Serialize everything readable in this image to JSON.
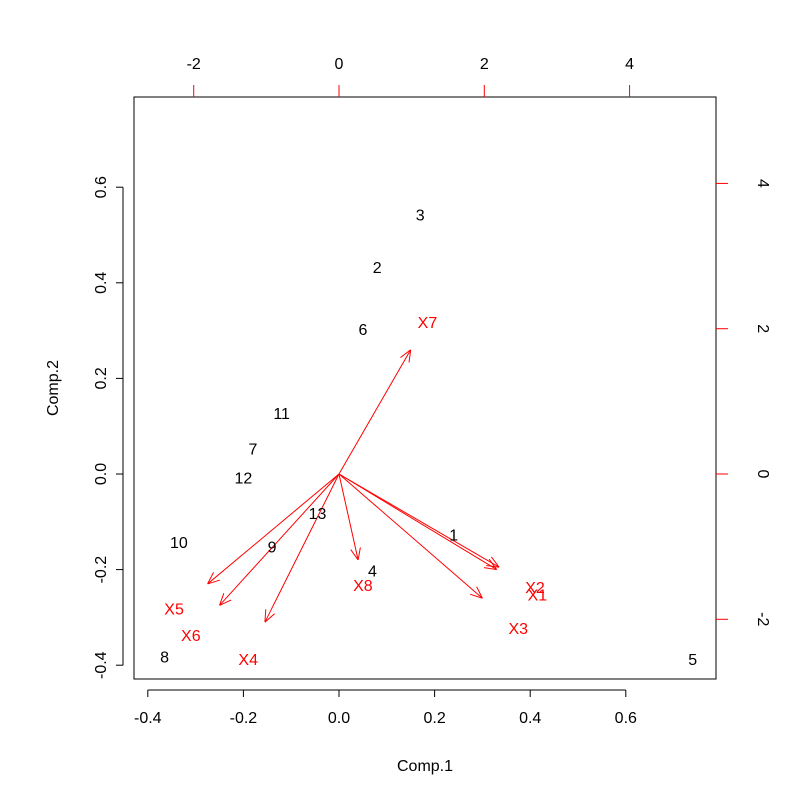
{
  "chart_data": {
    "type": "scatter",
    "subtype": "biplot",
    "xlabel": "Comp.1",
    "ylabel": "Comp.2",
    "xlim": [
      -0.4,
      0.78
    ],
    "ylim": [
      -0.43,
      0.79
    ],
    "x_ticks": [
      -0.4,
      -0.2,
      0.0,
      0.2,
      0.4,
      0.6
    ],
    "x_tick_labels": [
      "-0.4",
      "-0.2",
      "0.0",
      "0.2",
      "0.4",
      "0.6"
    ],
    "y_ticks": [
      -0.4,
      -0.2,
      0.0,
      0.2,
      0.4,
      0.6
    ],
    "y_tick_labels": [
      "-0.4",
      "-0.2",
      "0.0",
      "0.2",
      "0.4",
      "0.6"
    ],
    "top_ticks": [
      -2,
      0,
      2,
      4
    ],
    "top_tick_labels": [
      "-2",
      "0",
      "2",
      "4"
    ],
    "right_ticks": [
      -2,
      0,
      2,
      4
    ],
    "right_tick_labels": [
      "-2",
      "0",
      "2",
      "4"
    ],
    "secondary_scale": 6.58,
    "grid": false,
    "colors": {
      "points": "#000000",
      "loadings": "#ff0000",
      "axes": "#000000",
      "secondary_ticks": "#ff0000"
    },
    "points": [
      {
        "label": "1",
        "x": 0.24,
        "y": -0.13
      },
      {
        "label": "2",
        "x": 0.08,
        "y": 0.43
      },
      {
        "label": "3",
        "x": 0.17,
        "y": 0.54
      },
      {
        "label": "4",
        "x": 0.07,
        "y": -0.205
      },
      {
        "label": "5",
        "x": 0.74,
        "y": -0.39
      },
      {
        "label": "6",
        "x": 0.05,
        "y": 0.3
      },
      {
        "label": "7",
        "x": -0.18,
        "y": 0.05
      },
      {
        "label": "8",
        "x": -0.365,
        "y": -0.385
      },
      {
        "label": "9",
        "x": -0.14,
        "y": -0.155
      },
      {
        "label": "10",
        "x": -0.335,
        "y": -0.145
      },
      {
        "label": "11",
        "x": -0.12,
        "y": 0.125
      },
      {
        "label": "12",
        "x": -0.2,
        "y": -0.01
      },
      {
        "label": "13",
        "x": -0.045,
        "y": -0.085
      }
    ],
    "loadings": [
      {
        "label": "X1",
        "x": 0.33,
        "y": -0.2,
        "label_x": 0.415,
        "label_y": -0.255
      },
      {
        "label": "X2",
        "x": 0.335,
        "y": -0.195,
        "label_x": 0.41,
        "label_y": -0.24
      },
      {
        "label": "X3",
        "x": 0.3,
        "y": -0.26,
        "label_x": 0.375,
        "label_y": -0.325
      },
      {
        "label": "X4",
        "x": -0.155,
        "y": -0.31,
        "label_x": -0.19,
        "label_y": -0.39
      },
      {
        "label": "X5",
        "x": -0.275,
        "y": -0.23,
        "label_x": -0.345,
        "label_y": -0.285
      },
      {
        "label": "X6",
        "x": -0.25,
        "y": -0.275,
        "label_x": -0.31,
        "label_y": -0.34
      },
      {
        "label": "X7",
        "x": 0.15,
        "y": 0.26,
        "label_x": 0.185,
        "label_y": 0.315
      },
      {
        "label": "X8",
        "x": 0.04,
        "y": -0.18,
        "label_x": 0.05,
        "label_y": -0.235
      }
    ]
  }
}
